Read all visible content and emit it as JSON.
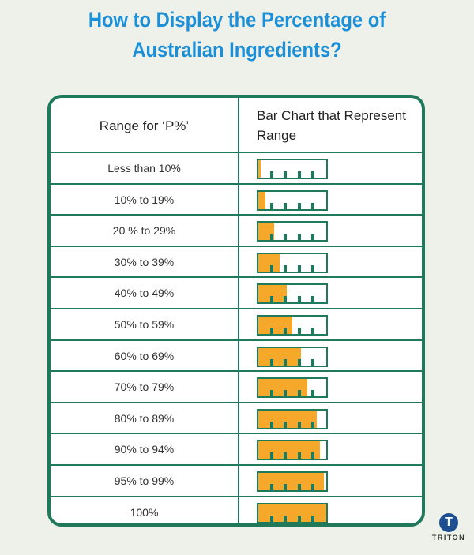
{
  "title_line1": "How to Display the Percentage of",
  "title_line2": "Australian Ingredients?",
  "header": {
    "col1": "Range for ‘P%’",
    "col2": "Bar Chart that Represent Range"
  },
  "rows": [
    {
      "label": "Less than 10%",
      "fill_percent": 3
    },
    {
      "label": "10% to 19%",
      "fill_percent": 11
    },
    {
      "label": "20 % to 29%",
      "fill_percent": 23
    },
    {
      "label": "30% to 39%",
      "fill_percent": 31
    },
    {
      "label": "40% to 49%",
      "fill_percent": 42
    },
    {
      "label": "50% to 59%",
      "fill_percent": 50
    },
    {
      "label": "60% to 69%",
      "fill_percent": 63
    },
    {
      "label": "70% to 79%",
      "fill_percent": 72
    },
    {
      "label": "80% to 89%",
      "fill_percent": 86
    },
    {
      "label": "90% to 94%",
      "fill_percent": 91
    },
    {
      "label": "95% to 99%",
      "fill_percent": 96
    },
    {
      "label": "100%",
      "fill_percent": 100
    }
  ],
  "colors": {
    "title": "#1b8fd8",
    "border": "#1f7a5c",
    "fill": "#f5a82a"
  },
  "logo": {
    "text": "TRITON",
    "icon": "t-logo-icon"
  }
}
